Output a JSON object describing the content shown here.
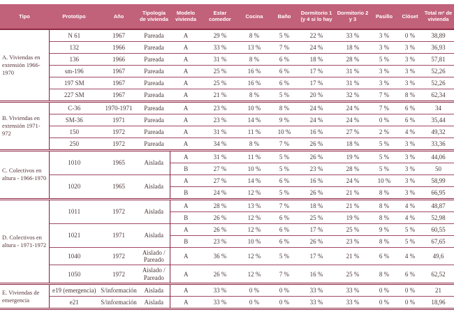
{
  "colors": {
    "header_bg": "#c2617a",
    "header_text": "#ffffff",
    "line_dark": "#8f2744",
    "line_row": "#a04565",
    "body_text": "#4a3538",
    "section_text": "#553237"
  },
  "table": {
    "columns": [
      "Tipo",
      "Prototipo",
      "Año",
      "Tipología de vivienda",
      "Modelo vivienda",
      "Estar comedor",
      "Cocina",
      "Baño",
      "Dormitorio 1 (y 4 si lo hay",
      "Dormitorio 2 y 3",
      "Pasillo",
      "Clóset",
      "Total m² de vivienda"
    ],
    "sections": [
      {
        "label": "A. Viviendas en extensión 1966-1970",
        "prototypes": [
          {
            "prototipo": "N 61",
            "ano": "1967",
            "tipologia": "Pareada",
            "modelos": [
              {
                "modelo": "A",
                "values": [
                  "29 %",
                  "8 %",
                  "5 %",
                  "22 %",
                  "33 %",
                  "3 %",
                  "0 %",
                  "38,89"
                ]
              }
            ]
          },
          {
            "prototipo": "132",
            "ano": "1966",
            "tipologia": "Pareada",
            "modelos": [
              {
                "modelo": "A",
                "values": [
                  "33 %",
                  "13 %",
                  "7 %",
                  "24 %",
                  "18 %",
                  "3 %",
                  "3 %",
                  "36,93"
                ]
              }
            ]
          },
          {
            "prototipo": "136",
            "ano": "1966",
            "tipologia": "Pareada",
            "modelos": [
              {
                "modelo": "A",
                "values": [
                  "31 %",
                  "8 %",
                  "6 %",
                  "18 %",
                  "28 %",
                  "5 %",
                  "3 %",
                  "57,81"
                ]
              }
            ]
          },
          {
            "prototipo": "sm-196",
            "ano": "1967",
            "tipologia": "Pareada",
            "modelos": [
              {
                "modelo": "A",
                "values": [
                  "25 %",
                  "16 %",
                  "6 %",
                  "17 %",
                  "31 %",
                  "3 %",
                  "3 %",
                  "52,26"
                ]
              }
            ]
          },
          {
            "prototipo": "197 SM",
            "ano": "1967",
            "tipologia": "Pareada",
            "modelos": [
              {
                "modelo": "A",
                "values": [
                  "25 %",
                  "16 %",
                  "6 %",
                  "17 %",
                  "31 %",
                  "3 %",
                  "3 %",
                  "52,26"
                ]
              }
            ]
          },
          {
            "prototipo": "227 SM",
            "ano": "1967",
            "tipologia": "Pareada",
            "modelos": [
              {
                "modelo": "A",
                "values": [
                  "21 %",
                  "8 %",
                  "5 %",
                  "20 %",
                  "32 %",
                  "7 %",
                  "8 %",
                  "62,34"
                ]
              }
            ]
          }
        ]
      },
      {
        "label": "B. Viviendas en extensión 1971-972",
        "prototypes": [
          {
            "prototipo": "C-36",
            "ano": "1970-1971",
            "tipologia": "Pareada",
            "modelos": [
              {
                "modelo": "A",
                "values": [
                  "23 %",
                  "10 %",
                  "8 %",
                  "24 %",
                  "24 %",
                  "7 %",
                  "6 %",
                  "34"
                ]
              }
            ]
          },
          {
            "prototipo": "SM-36",
            "ano": "1971",
            "tipologia": "Pareada",
            "modelos": [
              {
                "modelo": "A",
                "values": [
                  "23 %",
                  "14 %",
                  "9 %",
                  "24 %",
                  "24 %",
                  "0 %",
                  "6 %",
                  "35,44"
                ]
              }
            ]
          },
          {
            "prototipo": "150",
            "ano": "1972",
            "tipologia": "Pareada",
            "modelos": [
              {
                "modelo": "A",
                "values": [
                  "31 %",
                  "11 %",
                  "10 %",
                  "16 %",
                  "27 %",
                  "2 %",
                  "4 %",
                  "49,32"
                ]
              }
            ]
          },
          {
            "prototipo": "250",
            "ano": "1972",
            "tipologia": "Pareada",
            "modelos": [
              {
                "modelo": "A",
                "values": [
                  "34 %",
                  "8 %",
                  "7 %",
                  "26 %",
                  "18 %",
                  "5 %",
                  "3 %",
                  "33,36"
                ]
              }
            ]
          }
        ]
      },
      {
        "label": "C. Colectivos en altura - 1966-1970",
        "prototypes": [
          {
            "prototipo": "1010",
            "ano": "1965",
            "tipologia": "Aislada",
            "modelos": [
              {
                "modelo": "A",
                "values": [
                  "31 %",
                  "11 %",
                  "5 %",
                  "26 %",
                  "19 %",
                  "5 %",
                  "3 %",
                  "44,06"
                ]
              },
              {
                "modelo": "B",
                "values": [
                  "27 %",
                  "10 %",
                  "5 %",
                  "23 %",
                  "28 %",
                  "5 %",
                  "3 %",
                  "50"
                ]
              }
            ]
          },
          {
            "prototipo": "1020",
            "ano": "1965",
            "tipologia": "Aislada",
            "modelos": [
              {
                "modelo": "A",
                "values": [
                  "27 %",
                  "14 %",
                  "6 %",
                  "16 %",
                  "24 %",
                  "10 %",
                  "3 %",
                  "58,99"
                ]
              },
              {
                "modelo": "B",
                "values": [
                  "24 %",
                  "12 %",
                  "5 %",
                  "26 %",
                  "21 %",
                  "8 %",
                  "3 %",
                  "66,95"
                ]
              }
            ]
          }
        ]
      },
      {
        "label": "D. Colectivos en altura - 1971-1972",
        "prototypes": [
          {
            "prototipo": "1011",
            "ano": "1972",
            "tipologia": "Aislada",
            "modelos": [
              {
                "modelo": "A",
                "values": [
                  "28 %",
                  "13 %",
                  "7 %",
                  "18 %",
                  "21 %",
                  "8 %",
                  "4 %",
                  "48,87"
                ]
              },
              {
                "modelo": "B",
                "values": [
                  "26 %",
                  "12 %",
                  "6 %",
                  "25 %",
                  "19 %",
                  "8 %",
                  "4 %",
                  "52,98"
                ]
              }
            ]
          },
          {
            "prototipo": "1021",
            "ano": "1971",
            "tipologia": "Aislada",
            "modelos": [
              {
                "modelo": "A",
                "values": [
                  "26 %",
                  "12 %",
                  "6 %",
                  "17 %",
                  "25 %",
                  "9 %",
                  "5 %",
                  "60,55"
                ]
              },
              {
                "modelo": "B",
                "values": [
                  "23 %",
                  "10 %",
                  "6 %",
                  "26 %",
                  "23 %",
                  "8 %",
                  "5 %",
                  "67,65"
                ]
              }
            ]
          },
          {
            "prototipo": "1040",
            "ano": "1972",
            "tipologia": "Aislado / Pareado",
            "modelos": [
              {
                "modelo": "A",
                "values": [
                  "36 %",
                  "12 %",
                  "5 %",
                  "17 %",
                  "21 %",
                  "6 %",
                  "4 %",
                  "49,6"
                ]
              }
            ]
          },
          {
            "prototipo": "1050",
            "ano": "1972",
            "tipologia": "Aislado / Pareado",
            "modelos": [
              {
                "modelo": "A",
                "values": [
                  "26 %",
                  "12 %",
                  "7 %",
                  "16 %",
                  "25 %",
                  "8 %",
                  "6 %",
                  "62,52"
                ]
              }
            ]
          }
        ]
      },
      {
        "label": "E. Viviendas de emergencia",
        "prototypes": [
          {
            "prototipo": "e19 (emergencia)",
            "ano": "S/información",
            "tipologia": "Aislada",
            "modelos": [
              {
                "modelo": "A",
                "values": [
                  "33 %",
                  "0 %",
                  "0 %",
                  "33 %",
                  "33 %",
                  "0 %",
                  "0 %",
                  "21"
                ]
              }
            ]
          },
          {
            "prototipo": "e21",
            "ano": "S/información",
            "tipologia": "Aislada",
            "modelos": [
              {
                "modelo": "A",
                "values": [
                  "33 %",
                  "0 %",
                  "0 %",
                  "33 %",
                  "33 %",
                  "0 %",
                  "0 %",
                  "18,96"
                ]
              }
            ]
          }
        ]
      }
    ]
  }
}
